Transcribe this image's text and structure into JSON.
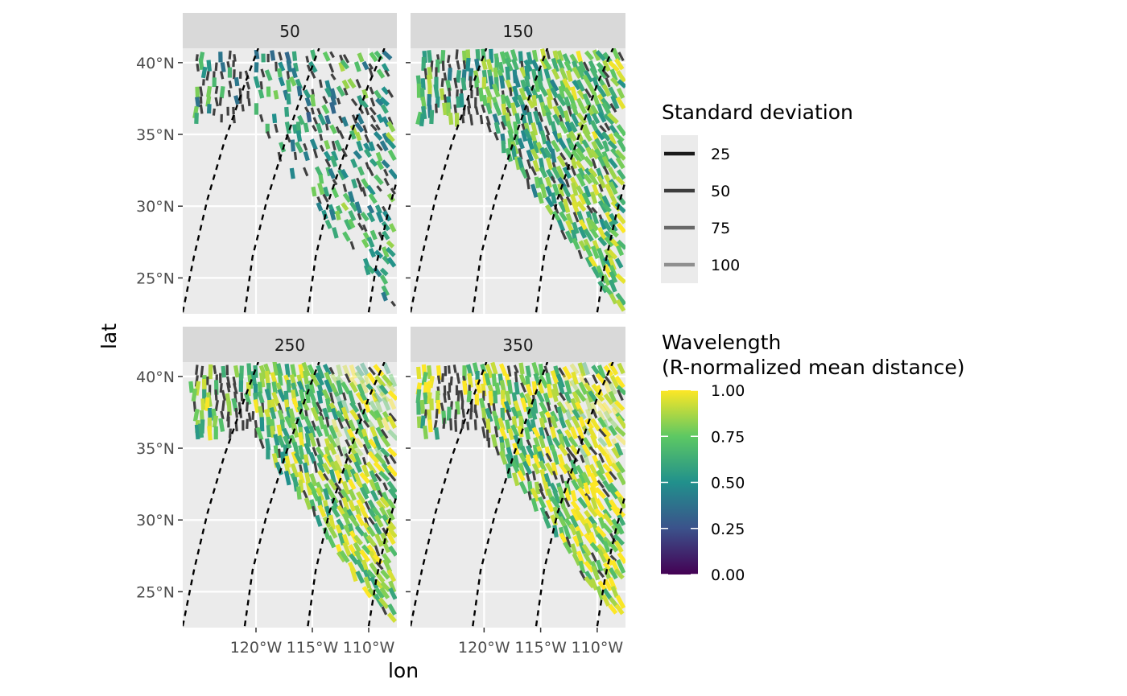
{
  "chart_data": {
    "type": "faceted-map",
    "x_axis": {
      "label": "lon",
      "range": [
        -126.5,
        -107.5
      ],
      "ticks": [
        -120,
        -115,
        -110
      ],
      "tick_labels": [
        "120°W",
        "115°W",
        "110°W"
      ]
    },
    "y_axis": {
      "label": "lat",
      "range": [
        22.5,
        41.0
      ],
      "ticks": [
        25,
        30,
        35,
        40
      ],
      "tick_labels": [
        "25°N",
        "30°N",
        "35°N",
        "40°N"
      ]
    },
    "panels": [
      {
        "label": "50",
        "color_bias": 0.0,
        "segment_scale": 0.8
      },
      {
        "label": "150",
        "color_bias": 0.12,
        "segment_scale": 1.0
      },
      {
        "label": "250",
        "color_bias": 0.2,
        "segment_scale": 1.05
      },
      {
        "label": "350",
        "color_bias": 0.24,
        "segment_scale": 1.05
      }
    ],
    "dashed_reference_curves": [
      {
        "points": [
          [
            -126.5,
            22.6
          ],
          [
            -125.5,
            26.5
          ],
          [
            -124.3,
            30.5
          ],
          [
            -122.8,
            34.5
          ],
          [
            -121.0,
            38.5
          ],
          [
            -119.8,
            41.0
          ]
        ]
      },
      {
        "points": [
          [
            -121.0,
            22.6
          ],
          [
            -120.3,
            26.5
          ],
          [
            -119.0,
            30.5
          ],
          [
            -117.4,
            34.5
          ],
          [
            -115.6,
            38.5
          ],
          [
            -114.4,
            41.0
          ]
        ]
      },
      {
        "points": [
          [
            -115.4,
            22.6
          ],
          [
            -114.7,
            26.5
          ],
          [
            -113.5,
            30.5
          ],
          [
            -111.8,
            34.5
          ],
          [
            -110.0,
            38.5
          ],
          [
            -108.6,
            41.0
          ]
        ]
      },
      {
        "points": [
          [
            -110.0,
            22.6
          ],
          [
            -109.3,
            26.0
          ],
          [
            -108.3,
            29.5
          ],
          [
            -107.6,
            31.5
          ]
        ]
      }
    ],
    "legend_linewidth": {
      "title": "Standard deviation",
      "entries": [
        {
          "label": "25",
          "color": "#1a1a1a"
        },
        {
          "label": "50",
          "color": "#3d3d3d"
        },
        {
          "label": "75",
          "color": "#686868"
        },
        {
          "label": "100",
          "color": "#8f8f8f"
        }
      ]
    },
    "legend_colorbar": {
      "title_line1": "Wavelength",
      "title_line2": "(R-normalized mean distance)",
      "range": [
        0,
        1
      ],
      "breaks": [
        {
          "value": 1.0,
          "label": "1.00"
        },
        {
          "value": 0.75,
          "label": "0.75"
        },
        {
          "value": 0.5,
          "label": "0.50"
        },
        {
          "value": 0.25,
          "label": "0.25"
        },
        {
          "value": 0.0,
          "label": "0.00"
        }
      ],
      "colormap": "viridis",
      "stops": [
        "#440154",
        "#3b528b",
        "#21908c",
        "#5dc863",
        "#fde725"
      ]
    },
    "colors": {
      "panel_background": "#ebebeb",
      "grid": "#ffffff",
      "strip_background": "#d9d9d9",
      "unclassified_segment": "#404040"
    }
  }
}
